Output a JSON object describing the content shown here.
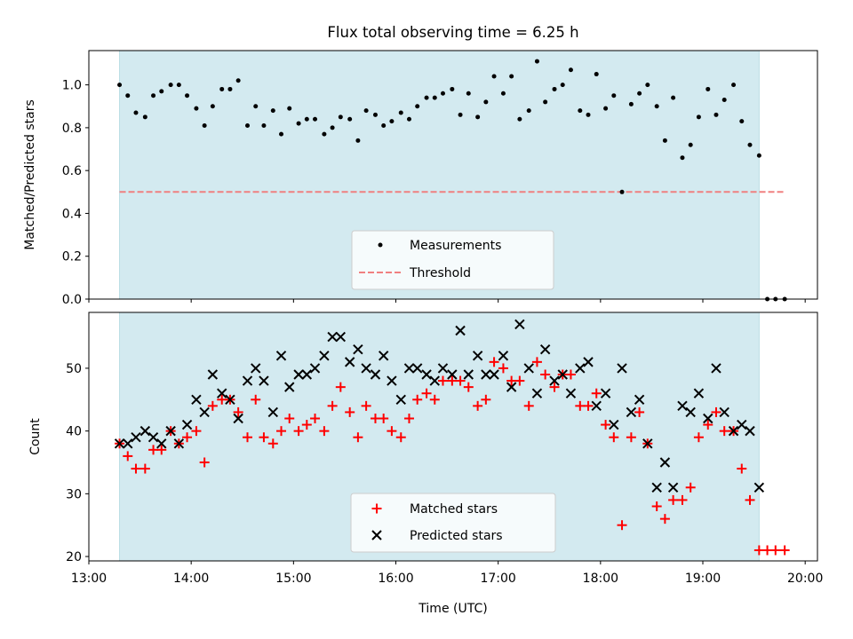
{
  "figure": {
    "title": "Flux total observing time = 6.25 h",
    "xlabel": "Time (UTC)"
  },
  "colors": {
    "span": "#d3eaf0",
    "span_edge": "#b9dce4",
    "measurement": "#000000",
    "threshold": "#f08080",
    "matched": "#ff0000",
    "predicted": "#000000"
  },
  "chart_data": [
    {
      "type": "scatter",
      "ylabel": "Matched/Predicted stars",
      "xlim": [
        13.0,
        20.12
      ],
      "ylim": [
        0.0,
        1.16
      ],
      "yticks": [
        0.0,
        0.2,
        0.4,
        0.6,
        0.8,
        1.0
      ],
      "ytick_labels": [
        "0.0",
        "0.2",
        "0.4",
        "0.6",
        "0.8",
        "1.0"
      ],
      "shaded_span": [
        13.3,
        19.55
      ],
      "threshold": {
        "name": "Threshold",
        "y": 0.5,
        "x": [
          13.3,
          19.8
        ]
      },
      "legend": {
        "position": "lower-center",
        "entries": [
          "Measurements",
          "Threshold"
        ]
      },
      "series": [
        {
          "name": "Measurements",
          "points": [
            [
              13.3,
              1.0
            ],
            [
              13.38,
              0.95
            ],
            [
              13.46,
              0.87
            ],
            [
              13.55,
              0.85
            ],
            [
              13.63,
              0.95
            ],
            [
              13.71,
              0.97
            ],
            [
              13.8,
              1.0
            ],
            [
              13.88,
              1.0
            ],
            [
              13.96,
              0.95
            ],
            [
              14.05,
              0.89
            ],
            [
              14.13,
              0.81
            ],
            [
              14.21,
              0.9
            ],
            [
              14.3,
              0.98
            ],
            [
              14.38,
              0.98
            ],
            [
              14.46,
              1.02
            ],
            [
              14.55,
              0.81
            ],
            [
              14.63,
              0.9
            ],
            [
              14.71,
              0.81
            ],
            [
              14.8,
              0.88
            ],
            [
              14.88,
              0.77
            ],
            [
              14.96,
              0.89
            ],
            [
              15.05,
              0.82
            ],
            [
              15.13,
              0.84
            ],
            [
              15.21,
              0.84
            ],
            [
              15.3,
              0.77
            ],
            [
              15.38,
              0.8
            ],
            [
              15.46,
              0.85
            ],
            [
              15.55,
              0.84
            ],
            [
              15.63,
              0.74
            ],
            [
              15.71,
              0.88
            ],
            [
              15.8,
              0.86
            ],
            [
              15.88,
              0.81
            ],
            [
              15.96,
              0.83
            ],
            [
              16.05,
              0.87
            ],
            [
              16.13,
              0.84
            ],
            [
              16.21,
              0.9
            ],
            [
              16.3,
              0.94
            ],
            [
              16.38,
              0.94
            ],
            [
              16.46,
              0.96
            ],
            [
              16.55,
              0.98
            ],
            [
              16.63,
              0.86
            ],
            [
              16.71,
              0.96
            ],
            [
              16.8,
              0.85
            ],
            [
              16.88,
              0.92
            ],
            [
              16.96,
              1.04
            ],
            [
              17.05,
              0.96
            ],
            [
              17.13,
              1.04
            ],
            [
              17.21,
              0.84
            ],
            [
              17.3,
              0.88
            ],
            [
              17.38,
              1.11
            ],
            [
              17.46,
              0.92
            ],
            [
              17.55,
              0.98
            ],
            [
              17.63,
              1.0
            ],
            [
              17.71,
              1.07
            ],
            [
              17.8,
              0.88
            ],
            [
              17.88,
              0.86
            ],
            [
              17.96,
              1.05
            ],
            [
              18.05,
              0.89
            ],
            [
              18.13,
              0.95
            ],
            [
              18.21,
              0.5
            ],
            [
              18.3,
              0.91
            ],
            [
              18.38,
              0.96
            ],
            [
              18.46,
              1.0
            ],
            [
              18.55,
              0.9
            ],
            [
              18.63,
              0.74
            ],
            [
              18.71,
              0.94
            ],
            [
              18.8,
              0.66
            ],
            [
              18.88,
              0.72
            ],
            [
              18.96,
              0.85
            ],
            [
              19.05,
              0.98
            ],
            [
              19.13,
              0.86
            ],
            [
              19.21,
              0.93
            ],
            [
              19.3,
              1.0
            ],
            [
              19.38,
              0.83
            ],
            [
              19.46,
              0.72
            ],
            [
              19.55,
              0.67
            ],
            [
              19.63,
              0.0
            ],
            [
              19.71,
              0.0
            ],
            [
              19.8,
              0.0
            ]
          ]
        }
      ]
    },
    {
      "type": "scatter",
      "ylabel": "Count",
      "xlim": [
        13.0,
        20.12
      ],
      "ylim": [
        19.3,
        58.9
      ],
      "yticks": [
        20,
        30,
        40,
        50
      ],
      "ytick_labels": [
        "20",
        "30",
        "40",
        "50"
      ],
      "xticks": [
        13,
        14,
        15,
        16,
        17,
        18,
        19,
        20
      ],
      "xtick_labels": [
        "13:00",
        "14:00",
        "15:00",
        "16:00",
        "17:00",
        "18:00",
        "19:00",
        "20:00"
      ],
      "shaded_span": [
        13.3,
        19.55
      ],
      "legend": {
        "position": "lower-center",
        "entries": [
          "Matched stars",
          "Predicted stars"
        ]
      },
      "series": [
        {
          "name": "Matched stars",
          "marker": "+",
          "points": [
            [
              13.3,
              38
            ],
            [
              13.38,
              36
            ],
            [
              13.46,
              34
            ],
            [
              13.55,
              34
            ],
            [
              13.63,
              37
            ],
            [
              13.71,
              37
            ],
            [
              13.8,
              40
            ],
            [
              13.88,
              38
            ],
            [
              13.96,
              39
            ],
            [
              14.05,
              40
            ],
            [
              14.13,
              35
            ],
            [
              14.21,
              44
            ],
            [
              14.3,
              45
            ],
            [
              14.38,
              45
            ],
            [
              14.46,
              43
            ],
            [
              14.55,
              39
            ],
            [
              14.63,
              45
            ],
            [
              14.71,
              39
            ],
            [
              14.8,
              38
            ],
            [
              14.88,
              40
            ],
            [
              14.96,
              42
            ],
            [
              15.05,
              40
            ],
            [
              15.13,
              41
            ],
            [
              15.21,
              42
            ],
            [
              15.3,
              40
            ],
            [
              15.38,
              44
            ],
            [
              15.46,
              47
            ],
            [
              15.55,
              43
            ],
            [
              15.63,
              39
            ],
            [
              15.71,
              44
            ],
            [
              15.8,
              42
            ],
            [
              15.88,
              42
            ],
            [
              15.96,
              40
            ],
            [
              16.05,
              39
            ],
            [
              16.13,
              42
            ],
            [
              16.21,
              45
            ],
            [
              16.3,
              46
            ],
            [
              16.38,
              45
            ],
            [
              16.46,
              48
            ],
            [
              16.55,
              48
            ],
            [
              16.63,
              48
            ],
            [
              16.71,
              47
            ],
            [
              16.8,
              44
            ],
            [
              16.88,
              45
            ],
            [
              16.96,
              51
            ],
            [
              17.05,
              50
            ],
            [
              17.13,
              48
            ],
            [
              17.21,
              48
            ],
            [
              17.3,
              44
            ],
            [
              17.38,
              51
            ],
            [
              17.46,
              49
            ],
            [
              17.55,
              47
            ],
            [
              17.63,
              49
            ],
            [
              17.71,
              49
            ],
            [
              17.8,
              44
            ],
            [
              17.88,
              44
            ],
            [
              17.96,
              46
            ],
            [
              18.05,
              41
            ],
            [
              18.13,
              39
            ],
            [
              18.21,
              25
            ],
            [
              18.3,
              39
            ],
            [
              18.38,
              43
            ],
            [
              18.46,
              38
            ],
            [
              18.55,
              28
            ],
            [
              18.63,
              26
            ],
            [
              18.71,
              29
            ],
            [
              18.8,
              29
            ],
            [
              18.88,
              31
            ],
            [
              18.96,
              39
            ],
            [
              19.05,
              41
            ],
            [
              19.13,
              43
            ],
            [
              19.21,
              40
            ],
            [
              19.3,
              40
            ],
            [
              19.38,
              34
            ],
            [
              19.46,
              29
            ],
            [
              19.55,
              21
            ],
            [
              19.63,
              21
            ],
            [
              19.71,
              21
            ],
            [
              19.8,
              21
            ]
          ]
        },
        {
          "name": "Predicted stars",
          "marker": "x",
          "points": [
            [
              13.3,
              38
            ],
            [
              13.38,
              38
            ],
            [
              13.46,
              39
            ],
            [
              13.55,
              40
            ],
            [
              13.63,
              39
            ],
            [
              13.71,
              38
            ],
            [
              13.8,
              40
            ],
            [
              13.88,
              38
            ],
            [
              13.96,
              41
            ],
            [
              14.05,
              45
            ],
            [
              14.13,
              43
            ],
            [
              14.21,
              49
            ],
            [
              14.3,
              46
            ],
            [
              14.38,
              45
            ],
            [
              14.46,
              42
            ],
            [
              14.55,
              48
            ],
            [
              14.63,
              50
            ],
            [
              14.71,
              48
            ],
            [
              14.8,
              43
            ],
            [
              14.88,
              52
            ],
            [
              14.96,
              47
            ],
            [
              15.05,
              49
            ],
            [
              15.13,
              49
            ],
            [
              15.21,
              50
            ],
            [
              15.3,
              52
            ],
            [
              15.38,
              55
            ],
            [
              15.46,
              55
            ],
            [
              15.55,
              51
            ],
            [
              15.63,
              53
            ],
            [
              15.71,
              50
            ],
            [
              15.8,
              49
            ],
            [
              15.88,
              52
            ],
            [
              15.96,
              48
            ],
            [
              16.05,
              45
            ],
            [
              16.13,
              50
            ],
            [
              16.21,
              50
            ],
            [
              16.3,
              49
            ],
            [
              16.38,
              48
            ],
            [
              16.46,
              50
            ],
            [
              16.55,
              49
            ],
            [
              16.63,
              56
            ],
            [
              16.71,
              49
            ],
            [
              16.8,
              52
            ],
            [
              16.88,
              49
            ],
            [
              16.96,
              49
            ],
            [
              17.05,
              52
            ],
            [
              17.13,
              47
            ],
            [
              17.21,
              57
            ],
            [
              17.3,
              50
            ],
            [
              17.38,
              46
            ],
            [
              17.46,
              53
            ],
            [
              17.55,
              48
            ],
            [
              17.63,
              49
            ],
            [
              17.71,
              46
            ],
            [
              17.8,
              50
            ],
            [
              17.88,
              51
            ],
            [
              17.96,
              44
            ],
            [
              18.05,
              46
            ],
            [
              18.13,
              41
            ],
            [
              18.21,
              50
            ],
            [
              18.3,
              43
            ],
            [
              18.38,
              45
            ],
            [
              18.46,
              38
            ],
            [
              18.55,
              31
            ],
            [
              18.63,
              35
            ],
            [
              18.71,
              31
            ],
            [
              18.8,
              44
            ],
            [
              18.88,
              43
            ],
            [
              18.96,
              46
            ],
            [
              19.05,
              42
            ],
            [
              19.13,
              50
            ],
            [
              19.21,
              43
            ],
            [
              19.3,
              40
            ],
            [
              19.38,
              41
            ],
            [
              19.46,
              40
            ],
            [
              19.55,
              31
            ]
          ]
        }
      ]
    }
  ]
}
